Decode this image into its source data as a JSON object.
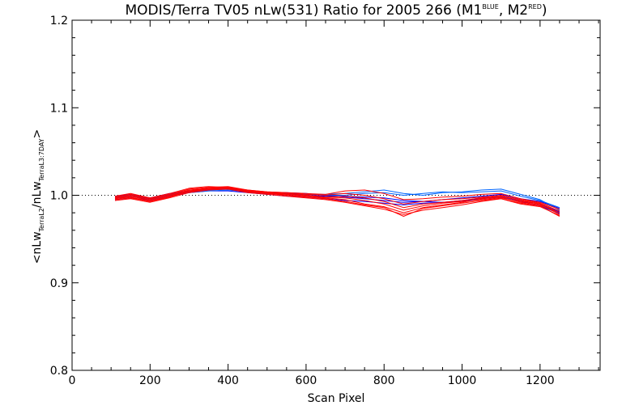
{
  "chart_data": {
    "type": "line",
    "title": {
      "main": "MODIS/Terra TV05 nLw(531) Ratio for 2005 266 (M1",
      "sup1": "BLUE",
      "sep": ", M2",
      "sup2": "RED",
      "close": ")"
    },
    "xlabel": "Scan Pixel",
    "ylabel": {
      "open": "<nLw",
      "sub1": "TerraL2",
      "mid": "/nLw",
      "sub2": "TerraL3:7DAY",
      "close": ">"
    },
    "xlim": [
      0,
      1354
    ],
    "ylim": [
      0.8,
      1.2
    ],
    "x_ticks": [
      0,
      200,
      400,
      600,
      800,
      1000,
      1200
    ],
    "y_ticks": [
      0.8,
      0.9,
      1.0,
      1.1,
      1.2
    ],
    "y_tick_labels": [
      "0.8",
      "0.9",
      "1.0",
      "1.1",
      "1.2"
    ],
    "reference_line": 1.0,
    "reference_style": "dotted",
    "grid": false,
    "legend": "none",
    "x": [
      110,
      150,
      200,
      250,
      300,
      350,
      400,
      450,
      500,
      550,
      600,
      650,
      700,
      750,
      800,
      850,
      900,
      950,
      1000,
      1050,
      1100,
      1150,
      1200,
      1250
    ],
    "series": [
      {
        "color": "#0000ff",
        "values": [
          0.997,
          0.999,
          0.995,
          1.0,
          1.004,
          1.006,
          1.007,
          1.004,
          1.002,
          1.001,
          1.0,
          0.999,
          0.999,
          0.998,
          0.997,
          0.994,
          0.993,
          0.992,
          0.994,
          0.997,
          0.999,
          0.994,
          0.99,
          0.981
        ]
      },
      {
        "color": "#0000ff",
        "values": [
          0.999,
          1.001,
          0.997,
          1.002,
          1.005,
          1.007,
          1.008,
          1.005,
          1.003,
          1.003,
          1.002,
          1.0,
          0.998,
          0.996,
          0.994,
          0.992,
          0.993,
          0.995,
          0.997,
          0.999,
          1.001,
          0.996,
          0.993,
          0.985
        ]
      },
      {
        "color": "#0000ff",
        "values": [
          0.995,
          0.997,
          0.994,
          0.999,
          1.003,
          1.005,
          1.005,
          1.003,
          1.001,
          0.999,
          0.998,
          0.996,
          0.994,
          0.993,
          0.991,
          0.989,
          0.991,
          0.992,
          0.993,
          0.996,
          0.998,
          0.993,
          0.988,
          0.979
        ]
      },
      {
        "color": "#0066ff",
        "values": [
          0.998,
          1.0,
          0.996,
          1.001,
          1.004,
          1.006,
          1.007,
          1.004,
          1.003,
          1.002,
          1.001,
          1.0,
          1.0,
          1.002,
          1.003,
          1.0,
          1.002,
          1.004,
          1.003,
          1.004,
          1.005,
          0.999,
          0.994,
          0.986
        ]
      },
      {
        "color": "#0066ff",
        "values": [
          0.997,
          0.999,
          0.996,
          1.0,
          1.003,
          1.005,
          1.006,
          1.004,
          1.002,
          1.002,
          1.001,
          1.001,
          1.002,
          1.004,
          1.006,
          1.002,
          1.0,
          1.003,
          1.004,
          1.006,
          1.007,
          1.001,
          0.995,
          0.983
        ]
      },
      {
        "color": "#ff0000",
        "values": [
          0.996,
          0.998,
          0.993,
          0.998,
          1.005,
          1.008,
          1.009,
          1.005,
          1.002,
          1.001,
          0.999,
          0.997,
          0.995,
          0.99,
          0.987,
          0.98,
          0.986,
          0.989,
          0.992,
          0.996,
          0.998,
          0.992,
          0.989,
          0.98
        ]
      },
      {
        "color": "#ff0000",
        "values": [
          0.998,
          1.001,
          0.996,
          1.001,
          1.007,
          1.009,
          1.01,
          1.006,
          1.004,
          1.003,
          1.001,
          1.0,
          1.002,
          1.0,
          0.996,
          0.99,
          0.993,
          0.995,
          0.996,
          0.998,
          1.0,
          0.995,
          0.991,
          0.982
        ]
      },
      {
        "color": "#ff0000",
        "values": [
          0.994,
          0.996,
          0.992,
          0.997,
          1.003,
          1.006,
          1.007,
          1.003,
          1.001,
          0.999,
          0.997,
          0.995,
          0.992,
          0.988,
          0.984,
          0.978,
          0.983,
          0.986,
          0.989,
          0.993,
          0.996,
          0.99,
          0.987,
          0.977
        ]
      },
      {
        "color": "#ff0000",
        "values": [
          0.997,
          1.0,
          0.995,
          1.0,
          1.006,
          1.008,
          1.008,
          1.005,
          1.003,
          1.002,
          1.0,
          0.998,
          0.997,
          0.994,
          0.99,
          0.983,
          0.988,
          0.991,
          0.993,
          0.995,
          0.997,
          0.993,
          0.99,
          0.978
        ]
      },
      {
        "color": "#ff0000",
        "values": [
          0.999,
          1.002,
          0.997,
          1.002,
          1.008,
          1.01,
          1.009,
          1.006,
          1.004,
          1.003,
          1.002,
          1.001,
          1.005,
          1.006,
          1.002,
          0.995,
          0.996,
          0.998,
          0.999,
          1.001,
          1.002,
          0.996,
          0.992,
          0.984
        ]
      },
      {
        "color": "#ff0000",
        "values": [
          0.995,
          0.997,
          0.993,
          0.998,
          1.004,
          1.007,
          1.008,
          1.004,
          1.002,
          1.0,
          0.998,
          0.996,
          0.993,
          0.989,
          0.986,
          0.976,
          0.985,
          0.988,
          0.991,
          0.994,
          0.996,
          0.991,
          0.988,
          0.976
        ]
      },
      {
        "color": "#ff0000",
        "values": [
          0.996,
          0.999,
          0.994,
          0.999,
          1.005,
          1.007,
          1.008,
          1.005,
          1.003,
          1.001,
          0.999,
          0.998,
          0.999,
          0.997,
          0.993,
          0.986,
          0.99,
          0.992,
          0.994,
          0.997,
          0.999,
          0.994,
          0.99,
          0.98
        ]
      }
    ]
  }
}
